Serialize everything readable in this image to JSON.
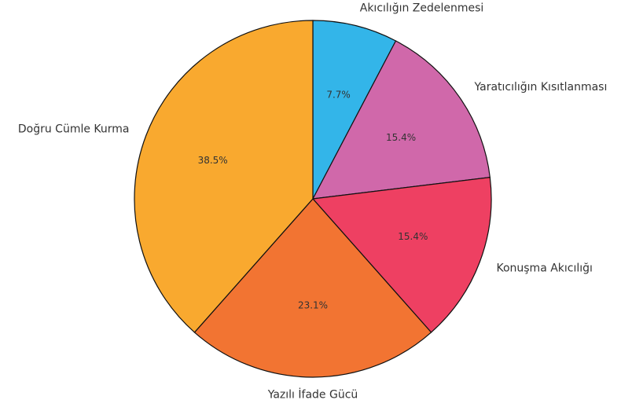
{
  "chart_data": {
    "type": "pie",
    "categories": [
      "Akıcılığın Zedelenmesi",
      "Yaratıcılığın Kısıtlanması",
      "Konuşma Akıcılığı",
      "Yazılı İfade Gücü",
      "Doğru Cümle Kurma"
    ],
    "values": [
      7.7,
      15.4,
      15.4,
      23.1,
      38.5
    ],
    "value_labels": [
      "7.7%",
      "15.4%",
      "15.4%",
      "23.1%",
      "38.5%"
    ],
    "colors": [
      "#33b5e9",
      "#d068aa",
      "#ee4062",
      "#f27432",
      "#f9a92f"
    ]
  }
}
